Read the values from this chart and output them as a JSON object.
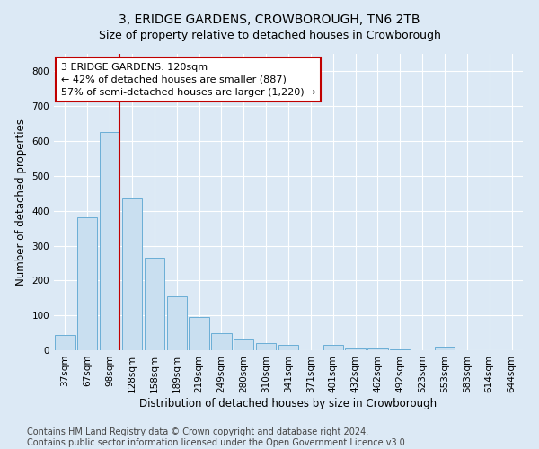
{
  "title": "3, ERIDGE GARDENS, CROWBOROUGH, TN6 2TB",
  "subtitle": "Size of property relative to detached houses in Crowborough",
  "xlabel": "Distribution of detached houses by size in Crowborough",
  "ylabel": "Number of detached properties",
  "categories": [
    "37sqm",
    "67sqm",
    "98sqm",
    "128sqm",
    "158sqm",
    "189sqm",
    "219sqm",
    "249sqm",
    "280sqm",
    "310sqm",
    "341sqm",
    "371sqm",
    "401sqm",
    "432sqm",
    "462sqm",
    "492sqm",
    "523sqm",
    "553sqm",
    "583sqm",
    "614sqm",
    "644sqm"
  ],
  "values": [
    45,
    380,
    625,
    435,
    265,
    155,
    95,
    50,
    30,
    20,
    15,
    0,
    15,
    5,
    5,
    3,
    0,
    10,
    0,
    0,
    0
  ],
  "bar_color": "#c9dff0",
  "bar_edge_color": "#6aaed6",
  "vline_color": "#c00000",
  "annotation_text": "3 ERIDGE GARDENS: 120sqm\n← 42% of detached houses are smaller (887)\n57% of semi-detached houses are larger (1,220) →",
  "annotation_box_color": "#ffffff",
  "annotation_box_edge_color": "#c00000",
  "ylim": [
    0,
    850
  ],
  "yticks": [
    0,
    100,
    200,
    300,
    400,
    500,
    600,
    700,
    800
  ],
  "background_color": "#dce9f5",
  "plot_bg_color": "#dce9f5",
  "footer_text": "Contains HM Land Registry data © Crown copyright and database right 2024.\nContains public sector information licensed under the Open Government Licence v3.0.",
  "title_fontsize": 10,
  "subtitle_fontsize": 9,
  "xlabel_fontsize": 8.5,
  "ylabel_fontsize": 8.5,
  "tick_fontsize": 7.5,
  "footer_fontsize": 7,
  "annotation_fontsize": 8
}
